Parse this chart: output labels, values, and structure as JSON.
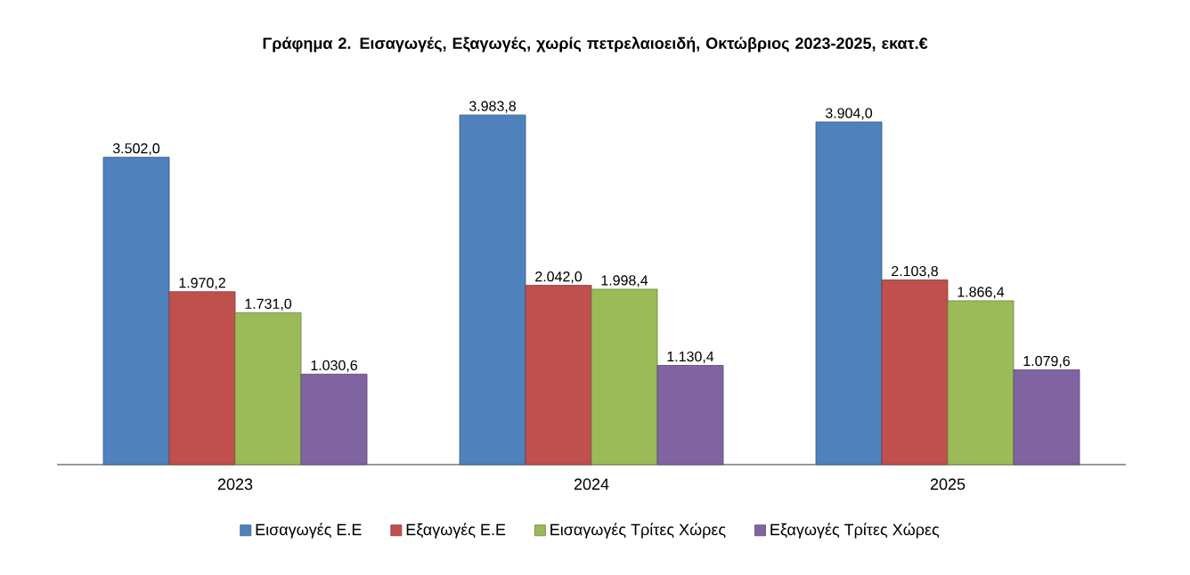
{
  "chart_data": {
    "type": "bar",
    "title": "Γράφημα 2. Εισαγωγές, Εξαγωγές, χωρίς πετρελαιοειδή, Οκτώβριος 2023-2025, εκατ.€",
    "categories": [
      "2023",
      "2024",
      "2025"
    ],
    "series": [
      {
        "name": "Εισαγωγές Ε.Ε",
        "color": "#4f81bd",
        "values": [
          3502.0,
          3983.8,
          3904.0
        ],
        "value_labels": [
          "3.502,0",
          "3.983,8",
          "3.904,0"
        ]
      },
      {
        "name": "Εξαγωγές  Ε.Ε",
        "color": "#c0504d",
        "values": [
          1970.2,
          2042.0,
          2103.8
        ],
        "value_labels": [
          "1.970,2",
          "2.042,0",
          "2.103,8"
        ]
      },
      {
        "name": "Εισαγωγές Τρίτες Χώρες",
        "color": "#9bbb59",
        "values": [
          1731.0,
          1998.4,
          1866.4
        ],
        "value_labels": [
          "1.731,0",
          "1.998,4",
          "1.866,4"
        ]
      },
      {
        "name": "Εξαγωγές Τρίτες Χώρες",
        "color": "#8064a2",
        "values": [
          1030.6,
          1130.4,
          1079.6
        ],
        "value_labels": [
          "1.030,6",
          "1.130,4",
          "1.079,6"
        ]
      }
    ],
    "legend": "bottom",
    "tick_labels": "x"
  }
}
